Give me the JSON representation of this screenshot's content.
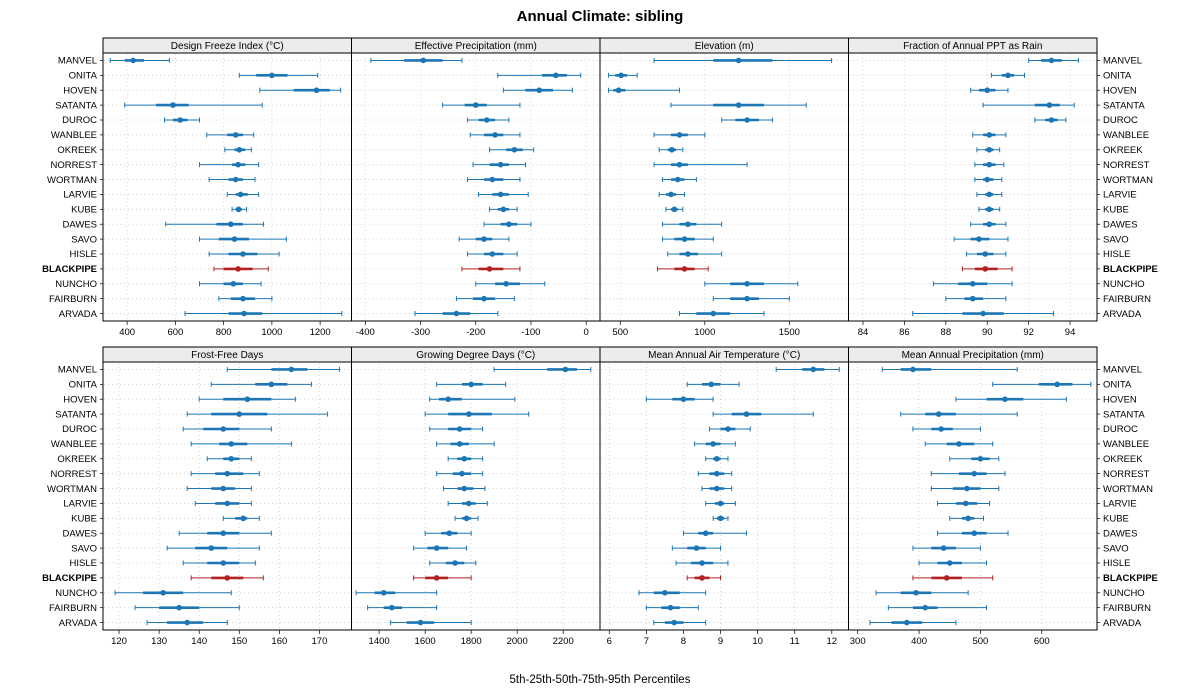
{
  "chart_data": {
    "type": "dot-interval-trellis",
    "title": "Annual Climate: sibling",
    "caption": "5th-25th-50th-75th-95th Percentiles",
    "legend": "values are [5th,25th,50th,75th,95th] percentiles per station",
    "stations": [
      "MANVEL",
      "ONITA",
      "HOVEN",
      "SATANTA",
      "DUROC",
      "WANBLEE",
      "OKREEK",
      "NORREST",
      "WORTMAN",
      "LARVIE",
      "KUBE",
      "DAWES",
      "SAVO",
      "HISLE",
      "BLACKPIPE",
      "NUNCHO",
      "FAIRBURN",
      "ARVADA"
    ],
    "highlight_station": "BLACKPIPE",
    "colors": {
      "normal": "#1d76b4",
      "highlight": "#b22222",
      "strip_bg": "#ececec",
      "grid": "#c9c9c9"
    },
    "panels": [
      {
        "title": "Design Freeze Index (°C)",
        "xlim": [
          300,
          1330
        ],
        "ticks": [
          400,
          600,
          800,
          1000,
          1200
        ],
        "values": [
          [
            330,
            390,
            425,
            470,
            575
          ],
          [
            865,
            935,
            1000,
            1065,
            1190
          ],
          [
            950,
            1090,
            1185,
            1240,
            1285
          ],
          [
            390,
            520,
            590,
            655,
            960
          ],
          [
            555,
            590,
            620,
            650,
            700
          ],
          [
            730,
            815,
            850,
            880,
            925
          ],
          [
            805,
            845,
            865,
            890,
            915
          ],
          [
            700,
            835,
            860,
            890,
            945
          ],
          [
            740,
            820,
            850,
            880,
            930
          ],
          [
            815,
            850,
            870,
            900,
            945
          ],
          [
            835,
            850,
            862,
            876,
            895
          ],
          [
            560,
            770,
            830,
            880,
            965
          ],
          [
            700,
            780,
            845,
            905,
            1060
          ],
          [
            740,
            820,
            880,
            940,
            1030
          ],
          [
            760,
            800,
            860,
            920,
            985
          ],
          [
            700,
            800,
            840,
            880,
            955
          ],
          [
            780,
            830,
            880,
            930,
            1000
          ],
          [
            640,
            820,
            885,
            960,
            1290
          ]
        ]
      },
      {
        "title": "Effective Precipitation (mm)",
        "xlim": [
          -425,
          25
        ],
        "ticks": [
          -400,
          -300,
          -200,
          -100,
          0
        ],
        "values": [
          [
            -390,
            -330,
            -295,
            -260,
            -225
          ],
          [
            -160,
            -80,
            -55,
            -35,
            -10
          ],
          [
            -150,
            -110,
            -85,
            -60,
            -25
          ],
          [
            -260,
            -220,
            -200,
            -180,
            -120
          ],
          [
            -215,
            -195,
            -180,
            -165,
            -140
          ],
          [
            -210,
            -185,
            -165,
            -150,
            -120
          ],
          [
            -175,
            -145,
            -130,
            -115,
            -95
          ],
          [
            -205,
            -175,
            -155,
            -140,
            -110
          ],
          [
            -215,
            -185,
            -170,
            -150,
            -120
          ],
          [
            -195,
            -170,
            -155,
            -140,
            -105
          ],
          [
            -175,
            -160,
            -150,
            -140,
            -125
          ],
          [
            -185,
            -155,
            -140,
            -125,
            -100
          ],
          [
            -230,
            -200,
            -185,
            -170,
            -140
          ],
          [
            -215,
            -185,
            -170,
            -150,
            -125
          ],
          [
            -225,
            -195,
            -175,
            -150,
            -120
          ],
          [
            -200,
            -165,
            -145,
            -120,
            -75
          ],
          [
            -235,
            -205,
            -185,
            -165,
            -130
          ],
          [
            -310,
            -260,
            -235,
            -210,
            -160
          ]
        ]
      },
      {
        "title": "Elevation (m)",
        "xlim": [
          380,
          1850
        ],
        "ticks": [
          500,
          1000,
          1500
        ],
        "values": [
          [
            700,
            1050,
            1200,
            1400,
            1750
          ],
          [
            430,
            470,
            505,
            540,
            600
          ],
          [
            430,
            460,
            490,
            530,
            850
          ],
          [
            800,
            1050,
            1200,
            1350,
            1600
          ],
          [
            1100,
            1180,
            1250,
            1320,
            1400
          ],
          [
            700,
            800,
            850,
            900,
            1000
          ],
          [
            730,
            780,
            805,
            830,
            870
          ],
          [
            700,
            800,
            850,
            900,
            1250
          ],
          [
            750,
            800,
            840,
            880,
            950
          ],
          [
            730,
            770,
            800,
            830,
            880
          ],
          [
            770,
            800,
            820,
            840,
            870
          ],
          [
            750,
            850,
            900,
            950,
            1100
          ],
          [
            750,
            820,
            880,
            940,
            1050
          ],
          [
            780,
            850,
            900,
            960,
            1100
          ],
          [
            720,
            820,
            880,
            940,
            1020
          ],
          [
            1000,
            1150,
            1250,
            1350,
            1550
          ],
          [
            1050,
            1150,
            1250,
            1320,
            1500
          ],
          [
            850,
            950,
            1050,
            1150,
            1350
          ]
        ]
      },
      {
        "title": "Fraction of Annual PPT as Rain",
        "xlim": [
          83.3,
          95.3
        ],
        "ticks": [
          84,
          86,
          88,
          90,
          92,
          94
        ],
        "values": [
          [
            92.0,
            92.6,
            93.1,
            93.6,
            94.4
          ],
          [
            90.2,
            90.7,
            91.0,
            91.3,
            91.8
          ],
          [
            89.2,
            89.6,
            90.0,
            90.4,
            91.0
          ],
          [
            89.8,
            92.3,
            93.0,
            93.5,
            94.2
          ],
          [
            92.3,
            92.8,
            93.1,
            93.4,
            93.8
          ],
          [
            89.3,
            89.8,
            90.1,
            90.4,
            90.9
          ],
          [
            89.5,
            89.9,
            90.1,
            90.3,
            90.6
          ],
          [
            89.4,
            89.8,
            90.1,
            90.4,
            90.8
          ],
          [
            89.4,
            89.8,
            90.0,
            90.3,
            90.7
          ],
          [
            89.5,
            89.9,
            90.1,
            90.3,
            90.7
          ],
          [
            89.6,
            89.9,
            90.1,
            90.3,
            90.6
          ],
          [
            89.2,
            89.8,
            90.1,
            90.4,
            90.9
          ],
          [
            88.4,
            89.2,
            89.6,
            90.1,
            91.0
          ],
          [
            89.0,
            89.5,
            89.9,
            90.3,
            90.9
          ],
          [
            88.8,
            89.4,
            89.9,
            90.5,
            91.2
          ],
          [
            87.4,
            88.6,
            89.3,
            90.0,
            91.2
          ],
          [
            88.0,
            88.9,
            89.3,
            89.8,
            90.9
          ],
          [
            86.4,
            88.8,
            89.8,
            90.8,
            93.2
          ]
        ]
      },
      {
        "title": "Frost-Free Days",
        "xlim": [
          116,
          178
        ],
        "ticks": [
          120,
          130,
          140,
          150,
          160,
          170
        ],
        "values": [
          [
            147,
            158,
            163,
            167,
            175
          ],
          [
            143,
            154,
            158,
            162,
            168
          ],
          [
            140,
            146,
            152,
            158,
            164
          ],
          [
            137,
            143,
            150,
            157,
            172
          ],
          [
            136,
            141,
            146,
            150,
            158
          ],
          [
            138,
            145,
            148,
            152,
            163
          ],
          [
            142,
            146,
            148,
            150,
            153
          ],
          [
            138,
            144,
            147,
            151,
            155
          ],
          [
            137,
            143,
            146,
            149,
            153
          ],
          [
            139,
            144,
            147,
            150,
            153
          ],
          [
            146,
            149,
            151,
            152,
            155
          ],
          [
            135,
            142,
            146,
            150,
            158
          ],
          [
            132,
            139,
            143,
            147,
            155
          ],
          [
            136,
            142,
            146,
            150,
            154
          ],
          [
            138,
            143,
            147,
            151,
            156
          ],
          [
            119,
            126,
            131,
            136,
            148
          ],
          [
            124,
            130,
            135,
            140,
            150
          ],
          [
            127,
            132,
            137,
            141,
            147
          ]
        ]
      },
      {
        "title": "Growing Degree Days (°C)",
        "xlim": [
          1280,
          2360
        ],
        "ticks": [
          1400,
          1600,
          1800,
          2000,
          2200
        ],
        "values": [
          [
            1900,
            2130,
            2210,
            2260,
            2320
          ],
          [
            1650,
            1760,
            1800,
            1850,
            1950
          ],
          [
            1620,
            1660,
            1700,
            1760,
            1990
          ],
          [
            1600,
            1700,
            1790,
            1890,
            2050
          ],
          [
            1620,
            1700,
            1750,
            1800,
            1850
          ],
          [
            1650,
            1710,
            1750,
            1790,
            1900
          ],
          [
            1700,
            1740,
            1770,
            1800,
            1850
          ],
          [
            1650,
            1720,
            1760,
            1800,
            1850
          ],
          [
            1680,
            1740,
            1770,
            1810,
            1860
          ],
          [
            1700,
            1760,
            1790,
            1820,
            1870
          ],
          [
            1730,
            1760,
            1780,
            1800,
            1830
          ],
          [
            1600,
            1670,
            1705,
            1740,
            1800
          ],
          [
            1550,
            1610,
            1650,
            1700,
            1780
          ],
          [
            1620,
            1690,
            1730,
            1770,
            1820
          ],
          [
            1550,
            1600,
            1650,
            1700,
            1800
          ],
          [
            1300,
            1380,
            1420,
            1470,
            1650
          ],
          [
            1350,
            1420,
            1455,
            1500,
            1650
          ],
          [
            1450,
            1520,
            1580,
            1640,
            1800
          ]
        ]
      },
      {
        "title": "Mean Annual Air Temperature (°C)",
        "xlim": [
          5.75,
          12.45
        ],
        "ticks": [
          6,
          7,
          8,
          9,
          10,
          11,
          12
        ],
        "values": [
          [
            10.5,
            11.2,
            11.5,
            11.8,
            12.2
          ],
          [
            8.1,
            8.5,
            8.75,
            9.0,
            9.5
          ],
          [
            7.0,
            7.7,
            8.0,
            8.3,
            8.8
          ],
          [
            8.8,
            9.3,
            9.7,
            10.1,
            11.5
          ],
          [
            8.7,
            9.0,
            9.2,
            9.4,
            9.8
          ],
          [
            8.3,
            8.6,
            8.8,
            9.0,
            9.4
          ],
          [
            8.6,
            8.8,
            8.9,
            9.0,
            9.2
          ],
          [
            8.4,
            8.7,
            8.9,
            9.1,
            9.3
          ],
          [
            8.5,
            8.7,
            8.9,
            9.1,
            9.3
          ],
          [
            8.6,
            8.85,
            9.0,
            9.1,
            9.4
          ],
          [
            8.8,
            8.9,
            9.0,
            9.1,
            9.2
          ],
          [
            8.0,
            8.4,
            8.6,
            8.8,
            9.7
          ],
          [
            7.7,
            8.1,
            8.35,
            8.6,
            9.0
          ],
          [
            7.8,
            8.2,
            8.5,
            8.8,
            9.2
          ],
          [
            8.1,
            8.3,
            8.5,
            8.7,
            9.0
          ],
          [
            6.8,
            7.2,
            7.5,
            7.9,
            8.6
          ],
          [
            7.0,
            7.4,
            7.65,
            7.9,
            8.4
          ],
          [
            7.2,
            7.5,
            7.75,
            8.0,
            8.6
          ]
        ]
      },
      {
        "title": "Mean Annual Precipitation (mm)",
        "xlim": [
          285,
          690
        ],
        "ticks": [
          300,
          400,
          500,
          600
        ],
        "values": [
          [
            340,
            370,
            390,
            420,
            560
          ],
          [
            520,
            595,
            625,
            650,
            680
          ],
          [
            460,
            510,
            540,
            570,
            640
          ],
          [
            370,
            410,
            432,
            460,
            560
          ],
          [
            390,
            420,
            436,
            455,
            500
          ],
          [
            410,
            445,
            465,
            490,
            520
          ],
          [
            450,
            485,
            500,
            515,
            530
          ],
          [
            420,
            465,
            490,
            510,
            540
          ],
          [
            420,
            455,
            478,
            500,
            530
          ],
          [
            430,
            460,
            476,
            495,
            515
          ],
          [
            450,
            470,
            480,
            490,
            505
          ],
          [
            430,
            470,
            490,
            510,
            545
          ],
          [
            390,
            420,
            440,
            460,
            500
          ],
          [
            400,
            430,
            450,
            470,
            510
          ],
          [
            390,
            420,
            445,
            470,
            520
          ],
          [
            330,
            370,
            395,
            420,
            480
          ],
          [
            350,
            390,
            410,
            430,
            510
          ],
          [
            320,
            355,
            380,
            405,
            460
          ]
        ]
      }
    ]
  }
}
